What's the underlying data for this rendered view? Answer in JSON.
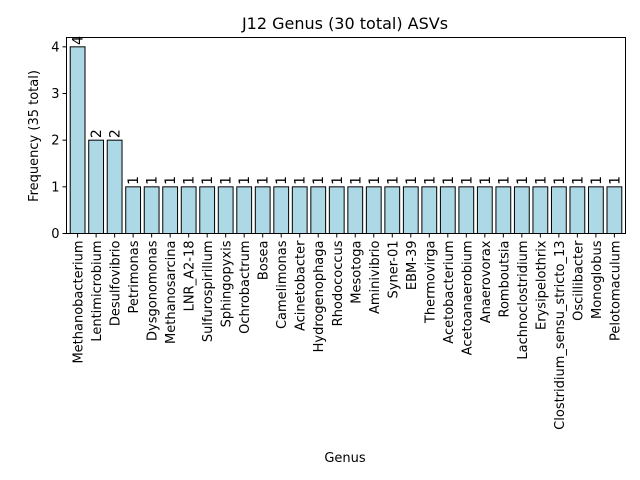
{
  "chart_data": {
    "type": "bar",
    "title": "J12 Genus (30 total) ASVs",
    "xlabel": "Genus",
    "ylabel": "Frequency (35 total)",
    "ylim": [
      0,
      4.2
    ],
    "yticks": [
      0,
      1,
      2,
      3,
      4
    ],
    "bar_color": "#add8e6",
    "edge_color": "#000000",
    "grid": false,
    "categories": [
      "Methanobacterium",
      "Lentimicrobium",
      "Desulfovibrio",
      "Petrimonas",
      "Dysgonomonas",
      "Methanosarcina",
      "LNR_A2-18",
      "Sulfurospirillum",
      "Sphingopyxis",
      "Ochrobactrum",
      "Bosea",
      "Camelimonas",
      "Acinetobacter",
      "Hydrogenophaga",
      "Rhodococcus",
      "Mesotoga",
      "Aminivibrio",
      "Syner-01",
      "EBM-39",
      "Thermovirga",
      "Acetobacterium",
      "Acetoanaerobium",
      "Anaerovorax",
      "Romboutsia",
      "Lachnoclostridium",
      "Erysipelothrix",
      "Clostridium_sensu_stricto_13",
      "Oscillibacter",
      "Monoglobus",
      "Pelotomaculum"
    ],
    "values": [
      4,
      2,
      2,
      1,
      1,
      1,
      1,
      1,
      1,
      1,
      1,
      1,
      1,
      1,
      1,
      1,
      1,
      1,
      1,
      1,
      1,
      1,
      1,
      1,
      1,
      1,
      1,
      1,
      1,
      1
    ]
  }
}
